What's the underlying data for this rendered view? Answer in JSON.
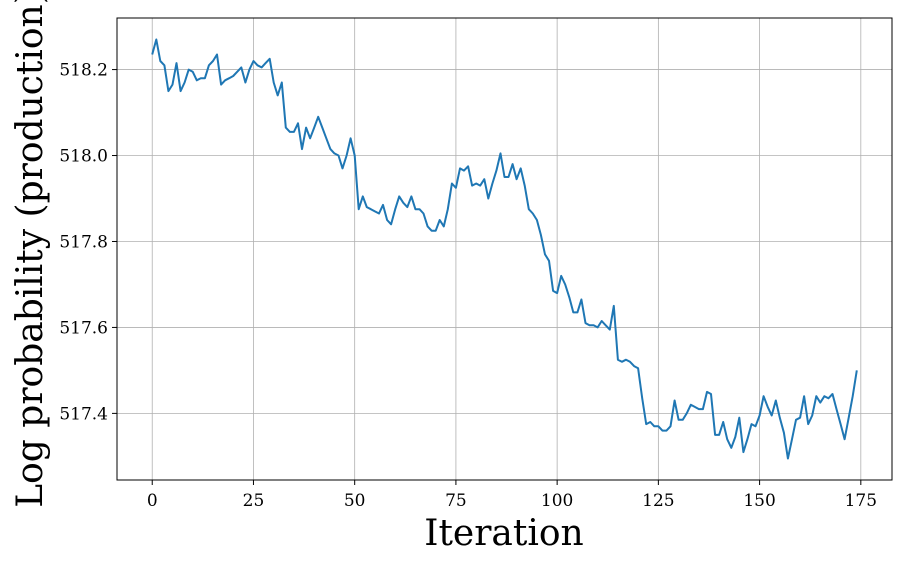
{
  "chart_data": {
    "type": "line",
    "xlabel": "Iteration",
    "ylabel": "Log probability (production)",
    "xlim": [
      -8.7,
      182.7
    ],
    "ylim": [
      517.245,
      518.32
    ],
    "xticks": [
      0,
      25,
      50,
      75,
      100,
      125,
      150,
      175
    ],
    "yticks": [
      517.4,
      517.6,
      517.8,
      518.0,
      518.2
    ],
    "xtick_labels": [
      "0",
      "25",
      "50",
      "75",
      "100",
      "125",
      "150",
      "175"
    ],
    "ytick_labels": [
      "517.4",
      "517.6",
      "517.8",
      "518.0",
      "518.2"
    ],
    "grid": true,
    "series_color": "#1f77b4",
    "series": [
      {
        "x": [
          0,
          1,
          2,
          3,
          4,
          5,
          6,
          7,
          8,
          9,
          10,
          11,
          12,
          13,
          14,
          15,
          16,
          17,
          18,
          19,
          20,
          21,
          22,
          23,
          24,
          25,
          26,
          27,
          28,
          29,
          30,
          31,
          32,
          33,
          34,
          35,
          36,
          37,
          38,
          39,
          40,
          41,
          42,
          43,
          44,
          45,
          46,
          47,
          48,
          49,
          50,
          51,
          52,
          53,
          54,
          55,
          56,
          57,
          58,
          59,
          60,
          61,
          62,
          63,
          64,
          65,
          66,
          67,
          68,
          69,
          70,
          71,
          72,
          73,
          74,
          75,
          76,
          77,
          78,
          79,
          80,
          81,
          82,
          83,
          84,
          85,
          86,
          87,
          88,
          89,
          90,
          91,
          92,
          93,
          94,
          95,
          96,
          97,
          98,
          99,
          100,
          101,
          102,
          103,
          104,
          105,
          106,
          107,
          108,
          109,
          110,
          111,
          112,
          113,
          114,
          115,
          116,
          117,
          118,
          119,
          120,
          121,
          122,
          123,
          124,
          125,
          126,
          127,
          128,
          129,
          130,
          131,
          132,
          133,
          134,
          135,
          136,
          137,
          138,
          139,
          140,
          141,
          142,
          143,
          144,
          145,
          146,
          147,
          148,
          149,
          150,
          151,
          152,
          153,
          154,
          155,
          156,
          157,
          158,
          159,
          160,
          161,
          162,
          163,
          164,
          165,
          166,
          167,
          168,
          169,
          170,
          171,
          172,
          173,
          174
        ],
        "values": [
          518.235,
          518.27,
          518.22,
          518.21,
          518.15,
          518.165,
          518.215,
          518.15,
          518.17,
          518.2,
          518.195,
          518.175,
          518.18,
          518.18,
          518.21,
          518.22,
          518.235,
          518.165,
          518.175,
          518.18,
          518.185,
          518.195,
          518.205,
          518.17,
          518.2,
          518.22,
          518.21,
          518.205,
          518.215,
          518.225,
          518.17,
          518.14,
          518.17,
          518.065,
          518.055,
          518.055,
          518.075,
          518.015,
          518.065,
          518.04,
          518.065,
          518.09,
          518.065,
          518.04,
          518.015,
          518.005,
          518.0,
          517.97,
          518.0,
          518.04,
          518.0,
          517.875,
          517.905,
          517.88,
          517.875,
          517.87,
          517.865,
          517.885,
          517.85,
          517.84,
          517.875,
          517.905,
          517.89,
          517.88,
          517.905,
          517.875,
          517.875,
          517.865,
          517.835,
          517.825,
          517.825,
          517.85,
          517.835,
          517.875,
          517.935,
          517.925,
          517.97,
          517.965,
          517.975,
          517.93,
          517.935,
          517.93,
          517.945,
          517.9,
          517.935,
          517.965,
          518.005,
          517.95,
          517.95,
          517.98,
          517.945,
          517.97,
          517.93,
          517.875,
          517.865,
          517.85,
          517.815,
          517.77,
          517.755,
          517.685,
          517.68,
          517.72,
          517.7,
          517.67,
          517.635,
          517.635,
          517.665,
          517.61,
          517.605,
          517.605,
          517.6,
          517.615,
          517.605,
          517.595,
          517.65,
          517.525,
          517.52,
          517.525,
          517.52,
          517.51,
          517.505,
          517.435,
          517.375,
          517.38,
          517.37,
          517.37,
          517.36,
          517.36,
          517.37,
          517.43,
          517.385,
          517.385,
          517.4,
          517.42,
          517.415,
          517.41,
          517.41,
          517.45,
          517.445,
          517.35,
          517.35,
          517.38,
          517.34,
          517.32,
          517.345,
          517.39,
          517.31,
          517.34,
          517.375,
          517.37,
          517.395,
          517.44,
          517.415,
          517.395,
          517.43,
          517.39,
          517.355,
          517.295,
          517.34,
          517.385,
          517.39,
          517.44,
          517.375,
          517.395,
          517.44,
          517.425,
          517.44,
          517.435,
          517.445,
          517.41,
          517.375,
          517.34,
          517.39,
          517.44,
          517.5
        ]
      }
    ]
  }
}
